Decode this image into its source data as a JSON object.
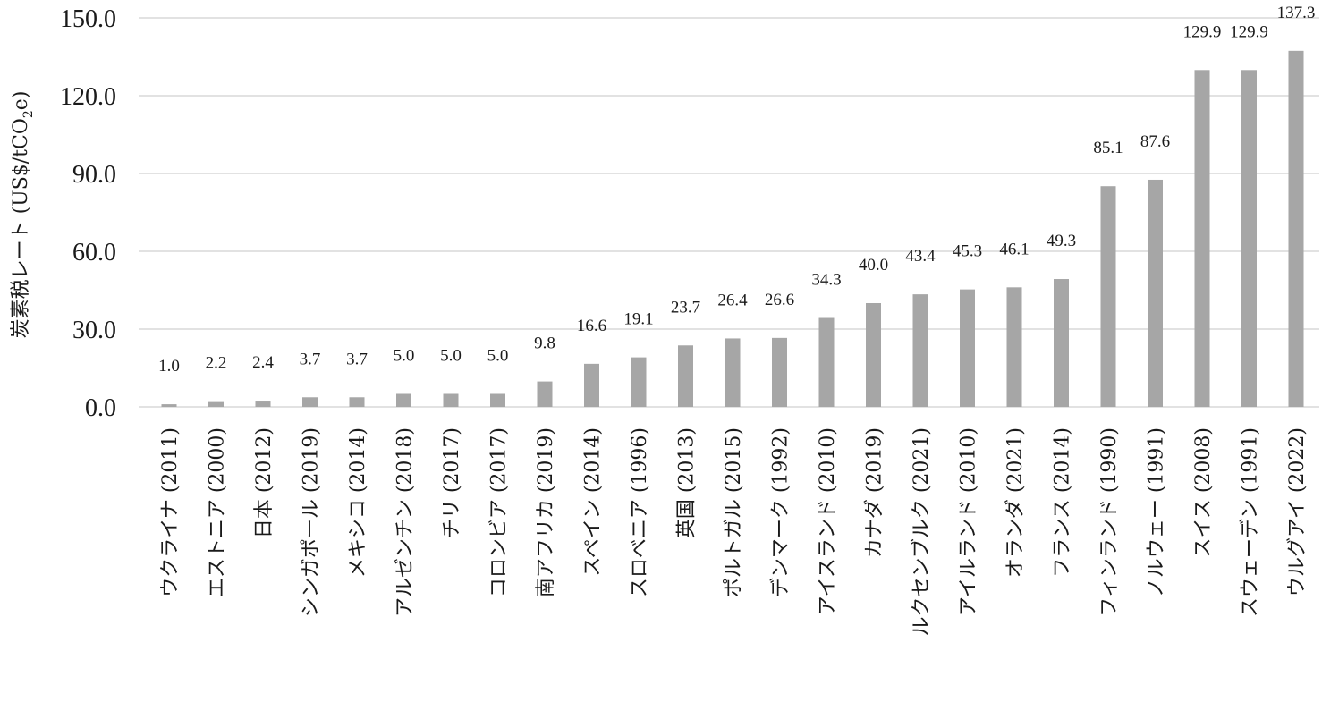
{
  "chart_data": {
    "type": "bar",
    "title": "",
    "xlabel": "",
    "ylabel": {
      "main": "炭素税レート (US$/tCO",
      "subscript": "2",
      "suffix": "e)"
    },
    "ylim": [
      0,
      150
    ],
    "yticks": [
      "0.0",
      "30.0",
      "60.0",
      "90.0",
      "120.0",
      "150.0"
    ],
    "grid": true,
    "legend": "none",
    "bar_color": "#a6a6a6",
    "grid_color": "#d9d9d9",
    "categories": [
      "ウクライナ (2011)",
      "エストニア (2000)",
      "日本 (2012)",
      "シンガポール (2019)",
      "メキシコ (2014)",
      "アルゼンチン (2018)",
      "チリ (2017)",
      "コロンビア (2017)",
      "南アフリカ (2019)",
      "スペイン (2014)",
      "スロベニア (1996)",
      "英国 (2013)",
      "ポルトガル (2015)",
      "デンマーク (1992)",
      "アイスランド (2010)",
      "カナダ (2019)",
      "ルクセンブルク (2021)",
      "アイルランド (2010)",
      "オランダ (2021)",
      "フランス (2014)",
      "フィンランド (1990)",
      "ノルウェー (1991)",
      "スイス (2008)",
      "スウェーデン (1991)",
      "ウルグアイ (2022)"
    ],
    "values": [
      1.0,
      2.2,
      2.4,
      3.7,
      3.7,
      5.0,
      5.0,
      5.0,
      9.8,
      16.6,
      19.1,
      23.7,
      26.4,
      26.6,
      34.3,
      40.0,
      43.4,
      45.3,
      46.1,
      49.3,
      85.1,
      87.6,
      129.9,
      129.9,
      137.3
    ],
    "data_labels": [
      "1.0",
      "2.2",
      "2.4",
      "3.7",
      "3.7",
      "5.0",
      "5.0",
      "5.0",
      "9.8",
      "16.6",
      "19.1",
      "23.7",
      "26.4",
      "26.6",
      "34.3",
      "40.0",
      "43.4",
      "45.3",
      "46.1",
      "49.3",
      "85.1",
      "87.6",
      "129.9",
      "129.9",
      "137.3"
    ]
  }
}
